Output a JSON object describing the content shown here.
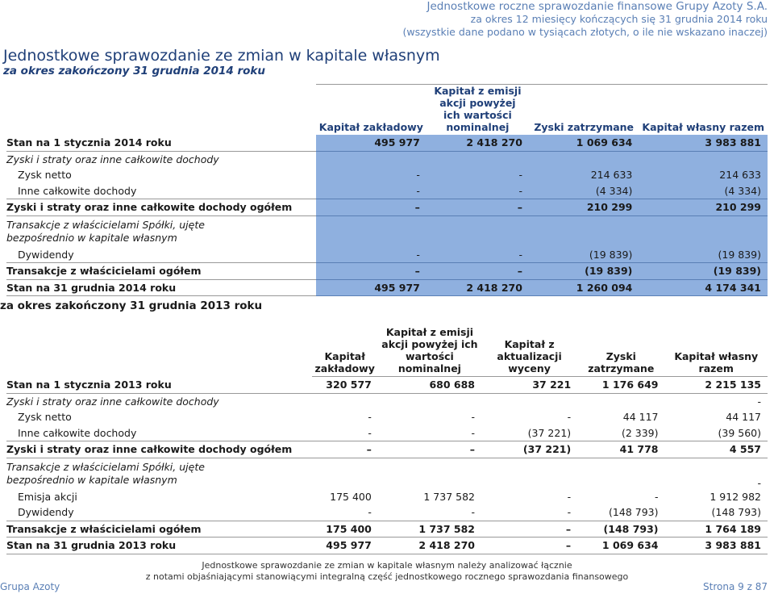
{
  "header": {
    "line1": "Jednostkowe roczne sprawozdanie finansowe Grupy Azoty S.A.",
    "line2": "za okres 12 miesięcy kończących się 31 grudnia 2014 roku",
    "line3": "(wszystkie dane podano w tysiącach złotych, o ile nie wskazano inaczej)"
  },
  "title": "Jednostkowe sprawozdanie ze zmian w kapitale własnym",
  "subtitle": "za okres zakończony 31 grudnia 2014 roku",
  "table2014": {
    "headers": [
      "Kapitał zakładowy",
      "Kapitał z emisji akcji powyżej ich wartości nominalnej",
      "Zyski zatrzymane",
      "Kapitał własny razem"
    ],
    "rows": [
      {
        "label": "Stan na 1 stycznia 2014 roku",
        "v": [
          "495 977",
          "2 418 270",
          "1 069 634",
          "3 983 881"
        ]
      },
      {
        "label": "Zyski i straty oraz inne całkowite dochody",
        "v": [
          "",
          "",
          "",
          ""
        ]
      },
      {
        "label": "Zysk netto",
        "v": [
          "-",
          "-",
          "214 633",
          "214 633"
        ]
      },
      {
        "label": "Inne całkowite dochody",
        "v": [
          "-",
          "-",
          "(4 334)",
          "(4 334)"
        ]
      },
      {
        "label": "Zyski i straty oraz inne całkowite dochody ogółem",
        "v": [
          "–",
          "–",
          "210 299",
          "210 299"
        ]
      },
      {
        "label": "Transakcje z właścicielami Spółki, ujęte bezpośrednio w kapitale własnym",
        "v": [
          "",
          "",
          "",
          ""
        ]
      },
      {
        "label": "Dywidendy",
        "v": [
          "-",
          "-",
          "(19 839)",
          "(19 839)"
        ]
      },
      {
        "label": "Transakcje z właścicielami ogółem",
        "v": [
          "–",
          "–",
          "(19 839)",
          "(19 839)"
        ]
      },
      {
        "label": "Stan na 31 grudnia 2014 roku",
        "v": [
          "495 977",
          "2 418 270",
          "1 260 094",
          "4 174 341"
        ]
      }
    ]
  },
  "section2": "za okres zakończony 31 grudnia 2013 roku",
  "table2013": {
    "headers": [
      "Kapitał zakładowy",
      "Kapitał z emisji akcji powyżej ich wartości nominalnej",
      "Kapitał z aktualizacji wyceny",
      "Zyski zatrzymane",
      "Kapitał własny razem"
    ],
    "rows": [
      {
        "label": "Stan na 1 stycznia 2013 roku",
        "v": [
          "320 577",
          "680 688",
          "37 221",
          "1 176 649",
          "2 215 135"
        ]
      },
      {
        "label": "Zyski i straty oraz inne całkowite dochody",
        "v": [
          "",
          "",
          "",
          "",
          "-"
        ]
      },
      {
        "label": "Zysk netto",
        "v": [
          "-",
          "-",
          "-",
          "44 117",
          "44 117"
        ]
      },
      {
        "label": "Inne całkowite dochody",
        "v": [
          "-",
          "-",
          "(37 221)",
          "(2 339)",
          "(39 560)"
        ]
      },
      {
        "label": "Zyski i straty oraz inne całkowite dochody ogółem",
        "v": [
          "–",
          "–",
          "(37 221)",
          "41 778",
          "4 557"
        ]
      },
      {
        "label": "Transakcje z właścicielami Spółki, ujęte bezpośrednio w kapitale własnym",
        "v": [
          "",
          "",
          "",
          "",
          "-"
        ]
      },
      {
        "label": "Emisja akcji",
        "v": [
          "175 400",
          "1 737 582",
          "-",
          "-",
          "1 912 982"
        ]
      },
      {
        "label": "Dywidendy",
        "v": [
          "-",
          "-",
          "-",
          "(148 793)",
          "(148 793)"
        ]
      },
      {
        "label": "Transakcje z właścicielami ogółem",
        "v": [
          "175 400",
          "1 737 582",
          "–",
          "(148 793)",
          "1 764 189"
        ]
      },
      {
        "label": "Stan na 31 grudnia 2013 roku",
        "v": [
          "495 977",
          "2 418 270",
          "–",
          "1 069 634",
          "3 983 881"
        ]
      }
    ]
  },
  "footer": {
    "line1": "Jednostkowe sprawozdanie ze zmian w kapitale własnym należy analizować łącznie",
    "line2": "z notami objaśniającymi stanowiącymi integralną część jednostkowego rocznego sprawozdania finansowego",
    "left": "Grupa Azoty",
    "right": "Strona 9 z 87"
  }
}
